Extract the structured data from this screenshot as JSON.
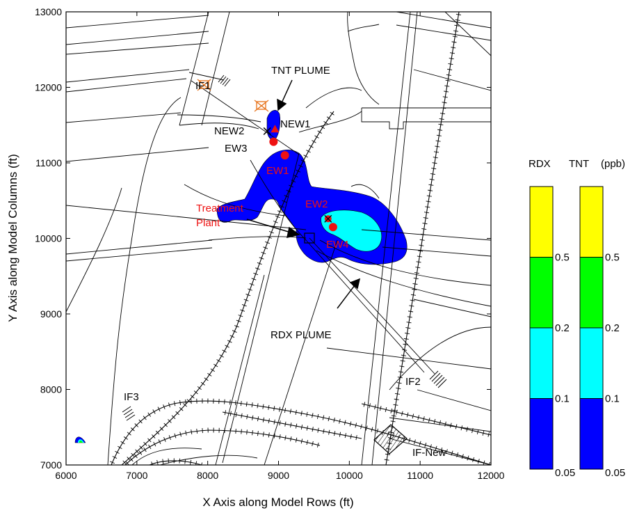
{
  "chart_data": {
    "type": "map",
    "xlabel": "X Axis along Model Rows (ft)",
    "ylabel": "Y Axis along Model Columns (ft)",
    "xlim": [
      6000,
      12000
    ],
    "ylim": [
      7000,
      13000
    ],
    "x_ticks": [
      6000,
      7000,
      8000,
      9000,
      10000,
      11000,
      12000
    ],
    "y_ticks": [
      7000,
      8000,
      9000,
      10000,
      11000,
      12000,
      13000
    ],
    "grid": false,
    "map_labels": [
      {
        "text": "TNT PLUME",
        "color": "#000000"
      },
      {
        "text": "NEW2",
        "color": "#000000"
      },
      {
        "text": "NEW1",
        "color": "#000000"
      },
      {
        "text": "EW3",
        "color": "#000000"
      },
      {
        "text": "EW1",
        "color": "#ee1111"
      },
      {
        "text": "EW2",
        "color": "#ee1111"
      },
      {
        "text": "EW4",
        "color": "#ee1111"
      },
      {
        "text": "Treatment",
        "color": "#ee1111"
      },
      {
        "text": "Plant",
        "color": "#ee1111"
      },
      {
        "text": "RDX PLUME",
        "color": "#000000"
      },
      {
        "text": "IF1",
        "color": "#000000"
      },
      {
        "text": "IF2",
        "color": "#000000"
      },
      {
        "text": "IF3",
        "color": "#000000"
      },
      {
        "text": "IF-New",
        "color": "#000000"
      }
    ],
    "wells": [
      {
        "name": "EW3",
        "x": 8930,
        "y": 11280
      },
      {
        "name": "EW1",
        "x": 9090,
        "y": 11100
      },
      {
        "name": "EW4",
        "x": 9770,
        "y": 10150
      },
      {
        "name": "EW2",
        "x": 9700,
        "y": 10260
      },
      {
        "name": "NEW2",
        "x": 8840,
        "y": 11420
      },
      {
        "name": "NEW1",
        "x": 8950,
        "y": 11440
      }
    ],
    "legend": {
      "title_rdx": "RDX",
      "title_tnt": "TNT",
      "unit": "(ppb)",
      "levels": [
        "0.05",
        "0.1",
        "0.2",
        "0.5"
      ],
      "colors": [
        "#0000ff",
        "#00ffff",
        "#00ff00",
        "#ffff00"
      ]
    }
  }
}
